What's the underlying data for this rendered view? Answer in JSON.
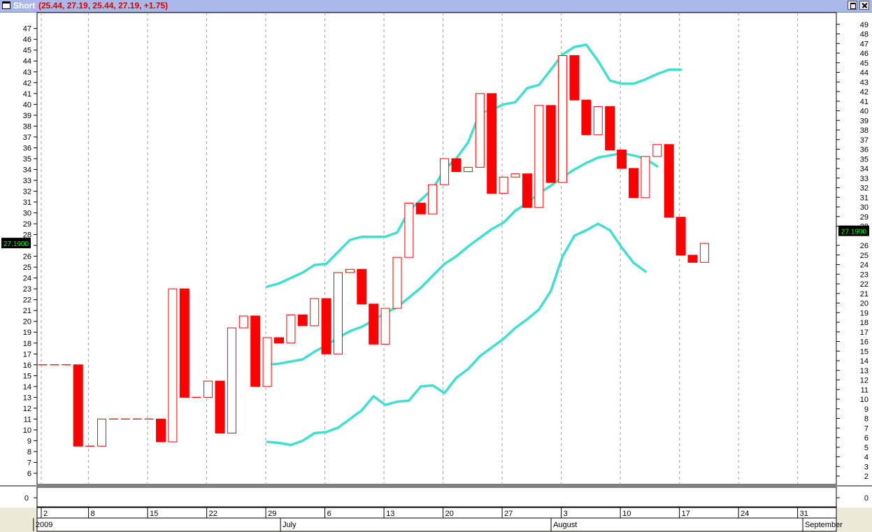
{
  "window": {
    "title": "Short",
    "title_values": "(25.44, 27.19, 25.44, 27.19, +1.75)",
    "title_bar_color": "#a9b8e8",
    "title_values_color": "#e00000"
  },
  "chart_data": {
    "type": "candlestick",
    "indicator": "Bollinger Bands",
    "colors": {
      "down": "#ff0000",
      "up": "#ff0000",
      "bands": "#40e0d0",
      "grid": "#a0a0a0",
      "price_box": "#000000",
      "price_text": "#00ff00"
    },
    "left_axis": {
      "min": 5,
      "max": 48,
      "ticks": [
        6,
        7,
        8,
        9,
        10,
        11,
        12,
        13,
        14,
        15,
        16,
        17,
        18,
        19,
        20,
        21,
        22,
        23,
        24,
        25,
        26,
        27,
        28,
        29,
        30,
        31,
        32,
        33,
        34,
        35,
        36,
        37,
        38,
        39,
        40,
        41,
        42,
        43,
        44,
        45,
        46,
        47
      ]
    },
    "right_axis": {
      "min": 1,
      "max": 50,
      "ticks": [
        2,
        3,
        4,
        5,
        6,
        7,
        8,
        9,
        10,
        11,
        12,
        13,
        14,
        15,
        16,
        17,
        18,
        19,
        20,
        21,
        22,
        23,
        24,
        25,
        26,
        28,
        29,
        30,
        31,
        32,
        33,
        34,
        35,
        36,
        37,
        38,
        39,
        40,
        41,
        42,
        43,
        44,
        45,
        46,
        47,
        48,
        49
      ]
    },
    "last_price_label": "27.1900",
    "last_price": 27.19,
    "lower_pane": {
      "left_label": "0",
      "right_label": "0"
    },
    "x_axis": {
      "day_labels": [
        {
          "label": "2",
          "index": 0
        },
        {
          "label": "8",
          "index": 4
        },
        {
          "label": "15",
          "index": 9
        },
        {
          "label": "22",
          "index": 14
        },
        {
          "label": "29",
          "index": 19
        },
        {
          "label": "6",
          "index": 24
        },
        {
          "label": "13",
          "index": 29
        },
        {
          "label": "20",
          "index": 34
        },
        {
          "label": "27",
          "index": 39
        },
        {
          "label": "3",
          "index": 44
        },
        {
          "label": "10",
          "index": 49
        },
        {
          "label": "17",
          "index": 54
        },
        {
          "label": "24",
          "index": 59
        },
        {
          "label": "31",
          "index": 64
        }
      ],
      "month_labels": [
        {
          "label": "2009",
          "index": -0.6
        },
        {
          "label": "July",
          "index": 20.3
        },
        {
          "label": "August",
          "index": 43.2
        },
        {
          "label": "September",
          "index": 64.5
        }
      ]
    },
    "candles": [
      {
        "i": 0,
        "o": 16,
        "c": 16
      },
      {
        "i": 1,
        "o": 16,
        "c": 16
      },
      {
        "i": 2,
        "o": 16,
        "c": 16
      },
      {
        "i": 3,
        "o": 16,
        "c": 8.5
      },
      {
        "i": 4,
        "o": 8.5,
        "c": 8.5
      },
      {
        "i": 5,
        "o": 8.5,
        "c": 11
      },
      {
        "i": 6,
        "o": 11,
        "c": 11
      },
      {
        "i": 7,
        "o": 11,
        "c": 11
      },
      {
        "i": 8,
        "o": 11,
        "c": 11
      },
      {
        "i": 9,
        "o": 11,
        "c": 11
      },
      {
        "i": 10,
        "o": 11,
        "c": 8.9
      },
      {
        "i": 11,
        "o": 8.9,
        "c": 23
      },
      {
        "i": 12,
        "o": 23,
        "c": 13
      },
      {
        "i": 13,
        "o": 13,
        "c": 13
      },
      {
        "i": 14,
        "o": 13,
        "c": 14.5
      },
      {
        "i": 15,
        "o": 14.5,
        "c": 9.7
      },
      {
        "i": 16,
        "o": 9.7,
        "c": 19.4
      },
      {
        "i": 17,
        "o": 19.4,
        "c": 20.5
      },
      {
        "i": 18,
        "o": 20.5,
        "c": 14
      },
      {
        "i": 19,
        "o": 14,
        "c": 18.5
      },
      {
        "i": 20,
        "o": 18.5,
        "c": 18
      },
      {
        "i": 21,
        "o": 18,
        "c": 20.6
      },
      {
        "i": 22,
        "o": 20.6,
        "c": 19.6
      },
      {
        "i": 23,
        "o": 19.6,
        "c": 22.1
      },
      {
        "i": 24,
        "o": 22.1,
        "c": 17
      },
      {
        "i": 25,
        "o": 17,
        "c": 24.5
      },
      {
        "i": 26,
        "o": 24.5,
        "c": 24.8
      },
      {
        "i": 27,
        "o": 24.8,
        "c": 21.6
      },
      {
        "i": 28,
        "o": 21.6,
        "c": 17.9
      },
      {
        "i": 29,
        "o": 17.9,
        "c": 21.2
      },
      {
        "i": 30,
        "o": 21.2,
        "c": 25.9
      },
      {
        "i": 31,
        "o": 25.9,
        "c": 30.9
      },
      {
        "i": 32,
        "o": 30.9,
        "c": 29.9
      },
      {
        "i": 33,
        "o": 29.9,
        "c": 32.6
      },
      {
        "i": 34,
        "o": 32.6,
        "c": 35
      },
      {
        "i": 35,
        "o": 35,
        "c": 33.8
      },
      {
        "i": 36,
        "o": 33.8,
        "c": 34.2
      },
      {
        "i": 37,
        "o": 34.2,
        "c": 41
      },
      {
        "i": 38,
        "o": 41,
        "c": 31.8
      },
      {
        "i": 39,
        "o": 31.8,
        "c": 33.3
      },
      {
        "i": 40,
        "o": 33.3,
        "c": 33.6
      },
      {
        "i": 41,
        "o": 33.6,
        "c": 30.5
      },
      {
        "i": 42,
        "o": 30.5,
        "c": 39.9
      },
      {
        "i": 43,
        "o": 39.9,
        "c": 32.8
      },
      {
        "i": 44,
        "o": 32.8,
        "c": 44.5
      },
      {
        "i": 45,
        "o": 44.5,
        "c": 40.4
      },
      {
        "i": 46,
        "o": 40.4,
        "c": 37.2
      },
      {
        "i": 47,
        "o": 37.2,
        "c": 39.8
      },
      {
        "i": 48,
        "o": 39.8,
        "c": 35.8
      },
      {
        "i": 49,
        "o": 35.8,
        "c": 34.1
      },
      {
        "i": 50,
        "o": 34.1,
        "c": 31.4
      },
      {
        "i": 51,
        "o": 31.4,
        "c": 35.2
      },
      {
        "i": 52,
        "o": 35.2,
        "c": 36.3
      },
      {
        "i": 53,
        "o": 36.3,
        "c": 29.6
      },
      {
        "i": 54,
        "o": 29.6,
        "c": 26.1
      },
      {
        "i": 55,
        "o": 26.1,
        "c": 25.44
      },
      {
        "i": 56,
        "o": 25.44,
        "c": 27.19
      }
    ],
    "bands": {
      "upper": [
        [
          19,
          23.2
        ],
        [
          20,
          23.5
        ],
        [
          21,
          24
        ],
        [
          22,
          24.5
        ],
        [
          23,
          25.2
        ],
        [
          24,
          25.3
        ],
        [
          25,
          26.4
        ],
        [
          26,
          27.5
        ],
        [
          27,
          27.8
        ],
        [
          28,
          27.8
        ],
        [
          29,
          27.8
        ],
        [
          30,
          28.2
        ],
        [
          31,
          30.2
        ],
        [
          32,
          31.2
        ],
        [
          33,
          32.2
        ],
        [
          34,
          34
        ],
        [
          35,
          35
        ],
        [
          36,
          36.5
        ],
        [
          37,
          39.2
        ],
        [
          38,
          39.5
        ],
        [
          39,
          40
        ],
        [
          40,
          40.2
        ],
        [
          41,
          41.5
        ],
        [
          42,
          41.8
        ],
        [
          43,
          43.2
        ],
        [
          44,
          44.6
        ],
        [
          45,
          45.3
        ],
        [
          46,
          45.5
        ],
        [
          47,
          44
        ],
        [
          48,
          42.2
        ],
        [
          49,
          41.9
        ],
        [
          50,
          41.9
        ],
        [
          51,
          42.3
        ],
        [
          52,
          42.8
        ],
        [
          53,
          43.2
        ],
        [
          54,
          43.2
        ]
      ],
      "middle": [
        [
          19,
          16
        ],
        [
          20,
          16.1
        ],
        [
          21,
          16.3
        ],
        [
          22,
          16.5
        ],
        [
          23,
          17.2
        ],
        [
          24,
          17.8
        ],
        [
          25,
          18.5
        ],
        [
          26,
          19.1
        ],
        [
          27,
          19.5
        ],
        [
          28,
          20.1
        ],
        [
          29,
          20.8
        ],
        [
          30,
          21.3
        ],
        [
          31,
          22.2
        ],
        [
          32,
          23.1
        ],
        [
          33,
          24.2
        ],
        [
          34,
          25.3
        ],
        [
          35,
          26
        ],
        [
          36,
          26.9
        ],
        [
          37,
          27.7
        ],
        [
          38,
          28.5
        ],
        [
          39,
          29.1
        ],
        [
          40,
          30.2
        ],
        [
          41,
          30.9
        ],
        [
          42,
          31.8
        ],
        [
          43,
          32.5
        ],
        [
          44,
          33.3
        ],
        [
          45,
          34
        ],
        [
          46,
          34.6
        ],
        [
          47,
          35.1
        ],
        [
          48,
          35.3
        ],
        [
          49,
          35.5
        ],
        [
          50,
          35.3
        ],
        [
          51,
          35
        ],
        [
          52,
          34.3
        ]
      ],
      "lower": [
        [
          19,
          8.9
        ],
        [
          20,
          8.8
        ],
        [
          21,
          8.6
        ],
        [
          22,
          9
        ],
        [
          23,
          9.7
        ],
        [
          24,
          9.8
        ],
        [
          25,
          10.2
        ],
        [
          26,
          11
        ],
        [
          27,
          11.8
        ],
        [
          28,
          13.1
        ],
        [
          29,
          12.3
        ],
        [
          30,
          12.6
        ],
        [
          31,
          12.7
        ],
        [
          32,
          14
        ],
        [
          33,
          14.1
        ],
        [
          34,
          13.4
        ],
        [
          35,
          14.8
        ],
        [
          36,
          15.6
        ],
        [
          37,
          16.8
        ],
        [
          38,
          17.6
        ],
        [
          39,
          18.4
        ],
        [
          40,
          19.4
        ],
        [
          41,
          20.2
        ],
        [
          42,
          21.1
        ],
        [
          43,
          22.8
        ],
        [
          44,
          26
        ],
        [
          45,
          27.9
        ],
        [
          46,
          28.4
        ],
        [
          47,
          29
        ],
        [
          48,
          28.4
        ],
        [
          49,
          26.8
        ],
        [
          50,
          25.4
        ],
        [
          51,
          24.6
        ]
      ]
    }
  }
}
